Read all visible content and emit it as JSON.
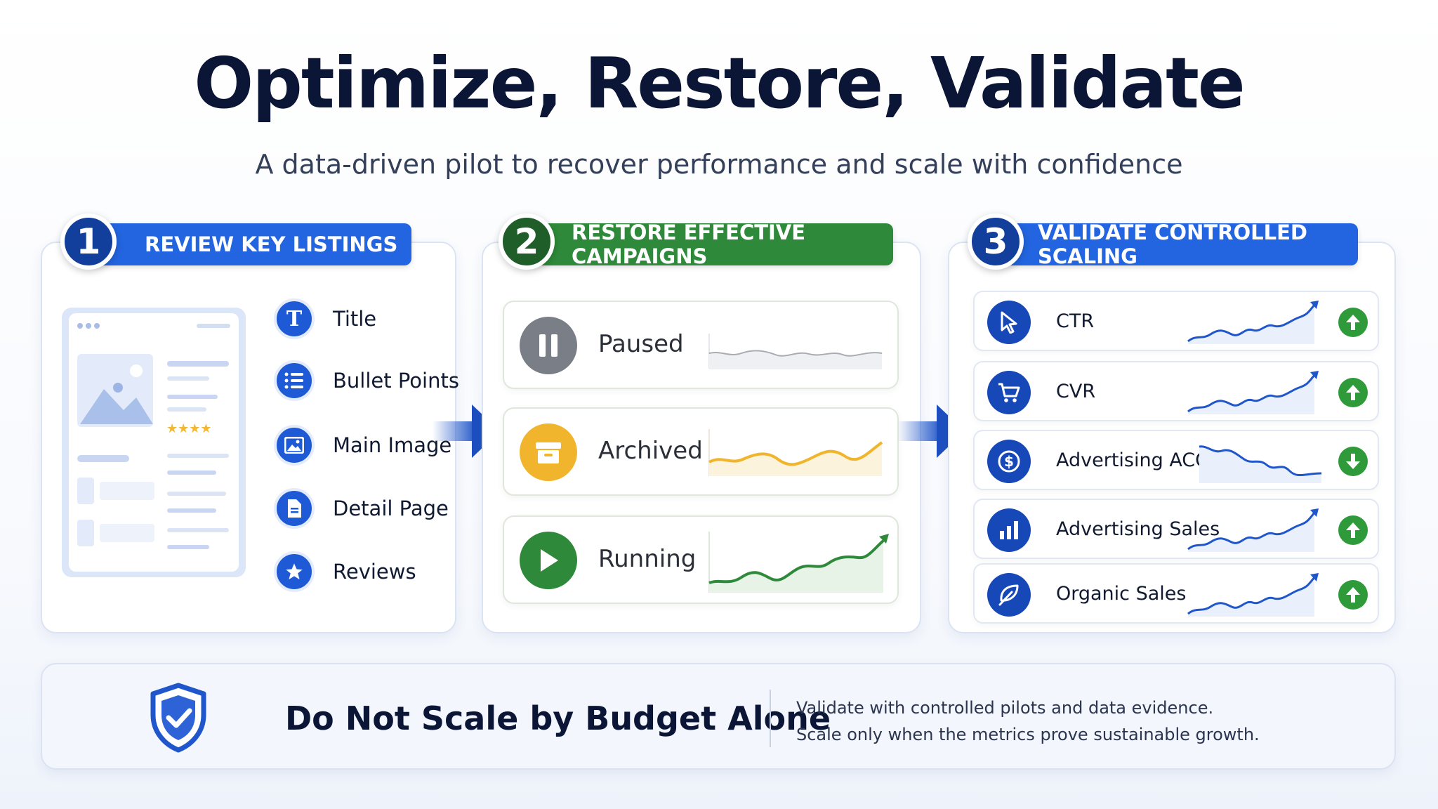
{
  "header": {
    "title": "Optimize, Restore, Validate",
    "subtitle": "A data-driven pilot to recover performance and scale with confidence"
  },
  "steps": [
    {
      "number": "1",
      "title": "REVIEW KEY LISTINGS",
      "items": [
        {
          "label": "Title",
          "icon": "title-t-icon"
        },
        {
          "label": "Bullet Points",
          "icon": "list-icon"
        },
        {
          "label": "Main Image",
          "icon": "image-icon"
        },
        {
          "label": "Detail Page",
          "icon": "document-icon"
        },
        {
          "label": "Reviews",
          "icon": "star-icon"
        }
      ]
    },
    {
      "number": "2",
      "title": "RESTORE EFFECTIVE CAMPAIGNS",
      "items": [
        {
          "label": "Paused",
          "icon": "pause-icon",
          "color": "#7a7e87"
        },
        {
          "label": "Archived",
          "icon": "archive-icon",
          "color": "#f0b52c"
        },
        {
          "label": "Running",
          "icon": "play-icon",
          "color": "#2e8a3a"
        }
      ]
    },
    {
      "number": "3",
      "title": "VALIDATE CONTROLLED SCALING",
      "items": [
        {
          "label": "CTR",
          "icon": "cursor-icon",
          "trend": "up"
        },
        {
          "label": "CVR",
          "icon": "cart-icon",
          "trend": "up"
        },
        {
          "label": "Advertising ACOS",
          "icon": "dollar-icon",
          "trend": "down"
        },
        {
          "label": "Advertising Sales",
          "icon": "bar-chart-icon",
          "trend": "up"
        },
        {
          "label": "Organic Sales",
          "icon": "leaf-icon",
          "trend": "up"
        }
      ]
    }
  ],
  "footer": {
    "title": "Do Not Scale by Budget Alone",
    "line1": "Validate with controlled pilots and data evidence.",
    "line2": "Scale only when the metrics prove sustainable growth.",
    "icon": "shield-check-icon"
  },
  "colors": {
    "blue": "#2365e0",
    "navy": "#123f9c",
    "green": "#2e8a3a",
    "amber": "#f0b52c",
    "gray": "#7a7e87"
  }
}
